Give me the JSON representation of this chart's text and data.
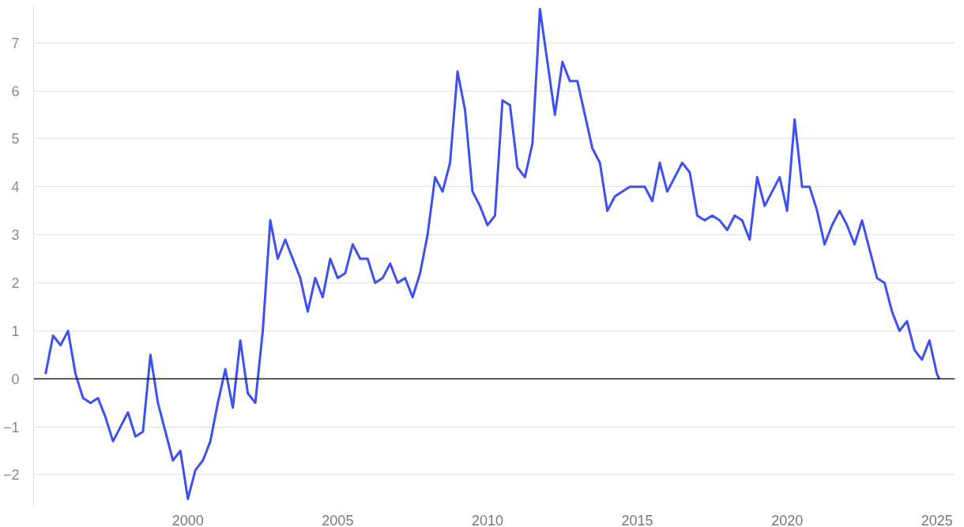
{
  "chart_data": {
    "type": "line",
    "x": [
      1995.25,
      1995.5,
      1995.75,
      1996,
      1996.25,
      1996.5,
      1996.75,
      1997,
      1997.25,
      1997.5,
      1997.75,
      1998,
      1998.25,
      1998.5,
      1998.75,
      1999,
      1999.25,
      1999.5,
      1999.75,
      2000,
      2000.25,
      2000.5,
      2000.75,
      2001,
      2001.25,
      2001.5,
      2001.75,
      2002,
      2002.25,
      2002.5,
      2002.75,
      2003,
      2003.25,
      2003.5,
      2003.75,
      2004,
      2004.25,
      2004.5,
      2004.75,
      2005,
      2005.25,
      2005.5,
      2005.75,
      2006,
      2006.25,
      2006.5,
      2006.75,
      2007,
      2007.25,
      2007.5,
      2007.75,
      2008,
      2008.25,
      2008.5,
      2008.75,
      2009,
      2009.25,
      2009.5,
      2009.75,
      2010,
      2010.25,
      2010.5,
      2010.75,
      2011,
      2011.25,
      2011.5,
      2011.75,
      2012,
      2012.25,
      2012.5,
      2012.75,
      2013,
      2013.25,
      2013.5,
      2013.75,
      2014,
      2014.25,
      2014.5,
      2014.75,
      2015,
      2015.25,
      2015.5,
      2015.75,
      2016,
      2016.25,
      2016.5,
      2016.75,
      2017,
      2017.25,
      2017.5,
      2017.75,
      2018,
      2018.25,
      2018.5,
      2018.75,
      2019,
      2019.25,
      2019.5,
      2019.75,
      2020,
      2020.25,
      2020.5,
      2020.75,
      2021,
      2021.25,
      2021.5,
      2021.75,
      2022,
      2022.25,
      2022.5,
      2022.75,
      2023,
      2023.25,
      2023.5,
      2023.75,
      2024,
      2024.25,
      2024.5,
      2024.75,
      2025,
      2025.08
    ],
    "series": [
      {
        "color": "#3d50f0",
        "values": [
          0.1,
          0.9,
          0.7,
          1.0,
          0.1,
          -0.4,
          -0.5,
          -0.4,
          -0.8,
          -1.3,
          -1.0,
          -0.7,
          -1.2,
          -1.1,
          0.5,
          -0.5,
          -1.1,
          -1.7,
          -1.5,
          -2.5,
          -1.9,
          -1.7,
          -1.3,
          -0.5,
          0.2,
          -0.6,
          0.8,
          -0.3,
          -0.5,
          1.0,
          3.3,
          2.5,
          2.9,
          2.5,
          2.1,
          1.4,
          2.1,
          1.7,
          2.5,
          2.1,
          2.2,
          2.8,
          2.5,
          2.5,
          2.0,
          2.1,
          2.4,
          2.0,
          2.1,
          1.7,
          2.2,
          3.0,
          4.2,
          3.9,
          4.5,
          6.4,
          5.6,
          3.9,
          3.6,
          3.2,
          3.4,
          5.8,
          5.7,
          4.4,
          4.2,
          4.9,
          7.7,
          6.6,
          5.5,
          6.6,
          6.2,
          6.2,
          5.5,
          4.8,
          4.5,
          3.5,
          3.8,
          3.9,
          4.0,
          4.0,
          4.0,
          3.7,
          4.5,
          3.9,
          4.2,
          4.5,
          4.3,
          3.4,
          3.3,
          3.4,
          3.3,
          3.1,
          3.4,
          3.3,
          2.9,
          4.2,
          3.6,
          3.9,
          4.2,
          3.5,
          5.4,
          4.0,
          4.0,
          3.5,
          2.8,
          3.2,
          3.5,
          3.2,
          2.8,
          3.3,
          2.7,
          2.1,
          2.0,
          1.4,
          1.0,
          1.2,
          0.6,
          0.4,
          0.8,
          0.1,
          0.0
        ]
      }
    ],
    "xlim": [
      1994.85,
      2025.6
    ],
    "xticks": [
      2000,
      2005,
      2010,
      2015,
      2020,
      2025
    ],
    "ylim": [
      -2.65,
      7.75
    ],
    "yticks": [
      {
        "value": -2,
        "label": "−2"
      },
      {
        "value": -1,
        "label": "−1"
      },
      0,
      1,
      2,
      3,
      4,
      5,
      6,
      7
    ],
    "grid": "y",
    "marker": "none",
    "line_style": "solid",
    "ref_lines": [
      {
        "axis": "y",
        "value": 0,
        "color": "#000000"
      }
    ]
  }
}
